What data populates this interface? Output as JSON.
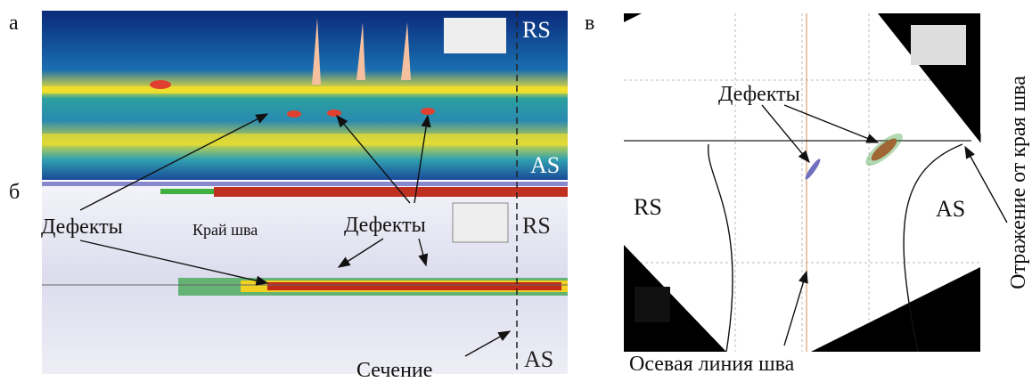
{
  "panel_a": {
    "label": "а",
    "side_top": "RS",
    "side_bottom": "AS"
  },
  "panel_b": {
    "label": "б",
    "side_top": "RS",
    "side_bottom": "AS",
    "defects_left": "Дефекты",
    "weld_edge": "Край шва",
    "defects_right": "Дефекты",
    "section": "Сечение"
  },
  "panel_c": {
    "label": "в",
    "side_left": "RS",
    "side_right": "AS",
    "defects": "Дефекты",
    "center_line": "Осевая линия шва",
    "edge_reflection": "Отражение от края шва"
  }
}
